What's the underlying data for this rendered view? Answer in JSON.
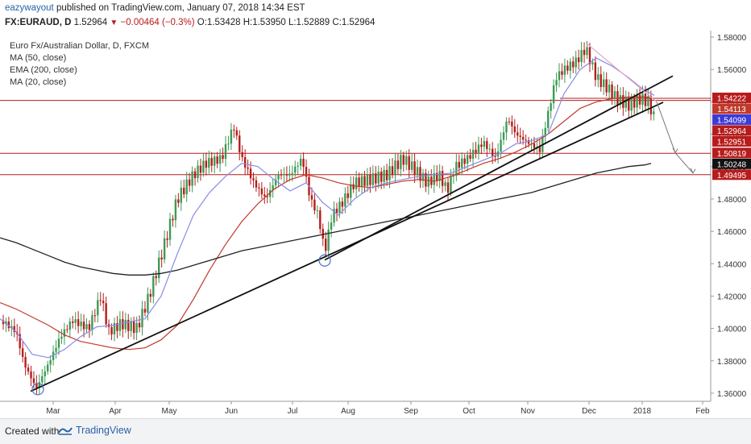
{
  "header": {
    "author": "eazywayout",
    "published": "published on TradingView.com, January 07, 2018 14:34 EST",
    "symbol": "FX:EURAUD, D",
    "last": "1.52964",
    "change_arrow": "▼",
    "change": "−0.00464 (−0.3%)",
    "ohlc": "O:1.53428 H:1.53950 L:1.52889 C:1.52964"
  },
  "legend": {
    "title": "Euro Fx/Australian Dollar, D, FXCM",
    "ma50": "MA (50, close)",
    "ema200": "EMA (200, close)",
    "ma20": "MA (20, close)"
  },
  "footer": {
    "created": "Created with",
    "brand": "TradingView"
  },
  "colors": {
    "up": "#3c9b53",
    "down": "#b71c1c",
    "ma50": "#c0392b",
    "ema200": "#222222",
    "ma20": "#8a8ae6",
    "hline": "#b71c1c"
  },
  "chart_data": {
    "type": "candlestick",
    "x_ticks": [
      "Mar",
      "Apr",
      "May",
      "Jun",
      "Jul",
      "Aug",
      "Sep",
      "Oct",
      "Nov",
      "Dec",
      "2018",
      "Feb"
    ],
    "y_ticks": [
      "1.58000",
      "1.56000",
      "1.54000",
      "1.52000",
      "1.50000",
      "1.48000",
      "1.46000",
      "1.44000",
      "1.42000",
      "1.40000",
      "1.38000",
      "1.36000"
    ],
    "ylim": [
      1.355,
      1.584
    ],
    "price_labels": [
      {
        "value": 1.54222,
        "text": "1.54222",
        "bg": "#b71c1c",
        "fg": "#ffffff"
      },
      {
        "value": 1.54113,
        "text": "1.54113",
        "bg": "#c0392b",
        "fg": "#ffffff"
      },
      {
        "value": 1.54099,
        "text": "1.54099",
        "bg": "#3b3bd9",
        "fg": "#ffffff"
      },
      {
        "value": 1.52964,
        "text": "1.52964",
        "bg": "#b71c1c",
        "fg": "#ffffff"
      },
      {
        "value": 1.52951,
        "text": "1.52951",
        "bg": "#b71c1c",
        "fg": "#ffffff"
      },
      {
        "value": 1.50819,
        "text": "1.50819",
        "bg": "#b71c1c",
        "fg": "#ffffff"
      },
      {
        "value": 1.50248,
        "text": "1.50248",
        "bg": "#111111",
        "fg": "#ffffff"
      },
      {
        "value": 1.49495,
        "text": "1.49495",
        "bg": "#b71c1c",
        "fg": "#ffffff"
      }
    ],
    "horizontal_levels": [
      1.5409,
      1.5082,
      1.495
    ],
    "series": [
      {
        "name": "MA (50, close)",
        "points": [
          [
            0,
            1.416
          ],
          [
            20,
            1.412
          ],
          [
            40,
            1.407
          ],
          [
            60,
            1.402
          ],
          [
            80,
            1.396
          ],
          [
            100,
            1.392
          ],
          [
            120,
            1.39
          ],
          [
            140,
            1.388
          ],
          [
            160,
            1.387
          ],
          [
            180,
            1.388
          ],
          [
            200,
            1.393
          ],
          [
            220,
            1.402
          ],
          [
            240,
            1.418
          ],
          [
            260,
            1.436
          ],
          [
            280,
            1.452
          ],
          [
            300,
            1.466
          ],
          [
            320,
            1.477
          ],
          [
            340,
            1.486
          ],
          [
            360,
            1.492
          ],
          [
            380,
            1.495
          ],
          [
            400,
            1.493
          ],
          [
            420,
            1.49
          ],
          [
            440,
            1.488
          ],
          [
            460,
            1.487
          ],
          [
            480,
            1.489
          ],
          [
            500,
            1.491
          ],
          [
            520,
            1.492
          ],
          [
            540,
            1.491
          ],
          [
            560,
            1.494
          ],
          [
            580,
            1.498
          ],
          [
            600,
            1.502
          ],
          [
            620,
            1.505
          ],
          [
            640,
            1.509
          ],
          [
            660,
            1.514
          ],
          [
            680,
            1.52
          ],
          [
            700,
            1.528
          ],
          [
            720,
            1.536
          ],
          [
            740,
            1.54
          ],
          [
            760,
            1.542
          ],
          [
            780,
            1.543
          ],
          [
            800,
            1.543
          ],
          [
            812,
            1.542
          ]
        ]
      },
      {
        "name": "EMA (200, close)",
        "points": [
          [
            0,
            1.456
          ],
          [
            20,
            1.453
          ],
          [
            40,
            1.449
          ],
          [
            60,
            1.445
          ],
          [
            80,
            1.441
          ],
          [
            100,
            1.438
          ],
          [
            120,
            1.436
          ],
          [
            140,
            1.434
          ],
          [
            160,
            1.433
          ],
          [
            180,
            1.433
          ],
          [
            200,
            1.434
          ],
          [
            220,
            1.436
          ],
          [
            240,
            1.439
          ],
          [
            260,
            1.442
          ],
          [
            280,
            1.445
          ],
          [
            300,
            1.448
          ],
          [
            320,
            1.45
          ],
          [
            340,
            1.452
          ],
          [
            360,
            1.454
          ],
          [
            380,
            1.456
          ],
          [
            400,
            1.458
          ],
          [
            420,
            1.46
          ],
          [
            440,
            1.462
          ],
          [
            460,
            1.464
          ],
          [
            480,
            1.466
          ],
          [
            500,
            1.468
          ],
          [
            520,
            1.47
          ],
          [
            540,
            1.472
          ],
          [
            560,
            1.474
          ],
          [
            580,
            1.476
          ],
          [
            600,
            1.478
          ],
          [
            620,
            1.48
          ],
          [
            640,
            1.482
          ],
          [
            660,
            1.484
          ],
          [
            680,
            1.487
          ],
          [
            700,
            1.49
          ],
          [
            720,
            1.493
          ],
          [
            740,
            1.496
          ],
          [
            760,
            1.498
          ],
          [
            780,
            1.5
          ],
          [
            800,
            1.501
          ],
          [
            808,
            1.502
          ]
        ]
      },
      {
        "name": "MA (20, close)",
        "points": [
          [
            0,
            1.406
          ],
          [
            20,
            1.398
          ],
          [
            40,
            1.384
          ],
          [
            60,
            1.382
          ],
          [
            80,
            1.387
          ],
          [
            100,
            1.395
          ],
          [
            120,
            1.401
          ],
          [
            140,
            1.402
          ],
          [
            160,
            1.404
          ],
          [
            180,
            1.406
          ],
          [
            200,
            1.42
          ],
          [
            220,
            1.446
          ],
          [
            240,
            1.47
          ],
          [
            260,
            1.484
          ],
          [
            280,
            1.494
          ],
          [
            300,
            1.502
          ],
          [
            320,
            1.5
          ],
          [
            340,
            1.492
          ],
          [
            360,
            1.485
          ],
          [
            380,
            1.49
          ],
          [
            400,
            1.478
          ],
          [
            420,
            1.47
          ],
          [
            440,
            1.48
          ],
          [
            460,
            1.487
          ],
          [
            480,
            1.49
          ],
          [
            500,
            1.492
          ],
          [
            520,
            1.494
          ],
          [
            540,
            1.495
          ],
          [
            560,
            1.496
          ],
          [
            580,
            1.5
          ],
          [
            600,
            1.504
          ],
          [
            620,
            1.508
          ],
          [
            640,
            1.514
          ],
          [
            660,
            1.516
          ],
          [
            680,
            1.52
          ],
          [
            700,
            1.545
          ],
          [
            720,
            1.56
          ],
          [
            740,
            1.567
          ],
          [
            760,
            1.562
          ],
          [
            780,
            1.555
          ],
          [
            800,
            1.547
          ],
          [
            812,
            1.544
          ]
        ]
      }
    ],
    "trendlines": [
      {
        "from": [
          38,
          1.3612
        ],
        "to": [
          823,
          1.5397
        ],
        "color": "#111111"
      },
      {
        "from": [
          403,
          1.4423
        ],
        "to": [
          835,
          1.556
        ],
        "color": "#111111"
      },
      {
        "from": [
          727,
          1.5765
        ],
        "to": [
          815,
          1.54
        ],
        "color": "#e6a6c9"
      }
    ],
    "short_levels": [
      {
        "from": 695,
        "to": 882,
        "value": 1.5422
      }
    ],
    "arrow": {
      "points": [
        [
          815,
          1.54
        ],
        [
          838,
          1.5085
        ],
        [
          860,
          1.496
        ]
      ]
    },
    "circles": [
      [
        47,
        1.3625
      ],
      [
        403,
        1.442
      ]
    ]
  }
}
